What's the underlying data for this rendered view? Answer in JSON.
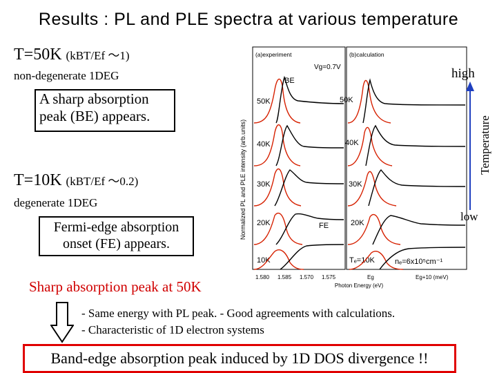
{
  "title": "Results : PL and PLE spectra at various temperature",
  "left": {
    "t50_main": "T=50K",
    "t50_ratio": "(kBT/Ef ～1)",
    "nondegenerate": "non-degenerate 1DEG",
    "box1_line1": "A sharp absorption",
    "box1_line2": "peak (BE) appears.",
    "t10_main": "T=10K",
    "t10_ratio": "(kBT/Ef ～0.2)",
    "degenerate": "degenerate 1DEG",
    "box2_line1": "Fermi-edge absorption",
    "box2_line2": "onset (FE) appears."
  },
  "temperature_axis": {
    "high": "high",
    "low": "low",
    "label": "Temperature"
  },
  "figure": {
    "panel_a_title": "(a)experiment",
    "panel_a_vg": "Vg=0.7V",
    "panel_b_title": "(b)calculation",
    "be_label": "BE",
    "fe_label": "FE",
    "y_axis_label": "Normalized PL and PLE intensity (arb.units)",
    "x_axis_label": "Photon Energy (eV)",
    "x_ticks_a": [
      "1.580",
      "1.585",
      "1.570",
      "1.575"
    ],
    "x_ticks_b": [
      "Eg",
      "Eg+10 (meV)"
    ],
    "temps_a": [
      "50K",
      "40K",
      "30K",
      "20K",
      "10K"
    ],
    "temps_b": [
      "50K",
      "40K",
      "30K",
      "20K",
      "Tₑ=10K"
    ],
    "density": "nₑ=6x10⁵cm⁻¹",
    "colors": {
      "pl": "#d62000",
      "ple": "#000000"
    }
  },
  "bottom": {
    "sharp_heading": "Sharp absorption peak at 50K",
    "bullet1": "- Same energy with PL peak.      - Good agreements with calculations.",
    "bullet2": "- Characteristic of 1D electron systems",
    "conclusion": "Band-edge absorption peak induced by 1D DOS divergence !!"
  },
  "colors": {
    "highlight_red": "#e00000",
    "heading_red": "#d00000",
    "arrow_blue": "#1f3fbf"
  }
}
